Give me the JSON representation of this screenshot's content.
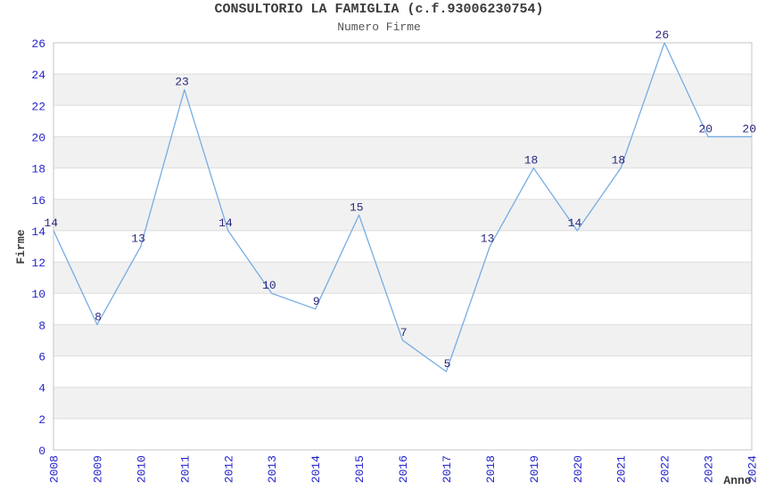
{
  "chart_data": {
    "type": "line",
    "title": "CONSULTORIO LA FAMIGLIA (c.f.93006230754)",
    "subtitle": "Numero Firme",
    "xlabel": "Anno",
    "ylabel": "Firme",
    "x_categories": [
      "2008",
      "2009",
      "2010",
      "2011",
      "2012",
      "2013",
      "2014",
      "2015",
      "2016",
      "2017",
      "2018",
      "2019",
      "2020",
      "2021",
      "2022",
      "2023",
      "2024"
    ],
    "series": [
      {
        "name": "Numero Firme",
        "values": [
          14,
          8,
          13,
          23,
          14,
          10,
          9,
          15,
          7,
          5,
          13,
          18,
          14,
          18,
          26,
          20,
          20
        ]
      }
    ],
    "ylim": [
      0,
      26
    ],
    "ytick_step": 2,
    "yticks": [
      0,
      2,
      4,
      6,
      8,
      10,
      12,
      14,
      16,
      18,
      20,
      22,
      24,
      26
    ],
    "grid": "horizontal gridlines with alternating shaded bands",
    "legend_position": "none",
    "point_labels_shown": true,
    "x_tick_rotation_degrees": 90
  },
  "colors": {
    "line": "#77ADE3",
    "tick_label": "#2323CB",
    "point_label": "#28287D",
    "band": "#F1F1F1",
    "grid": "#DDDDDD",
    "border": "#C6C6C6",
    "title": "#3B3B3B",
    "subtitle": "#555555",
    "axis_label": "#3B3B3B",
    "background": "#FFFFFF"
  }
}
